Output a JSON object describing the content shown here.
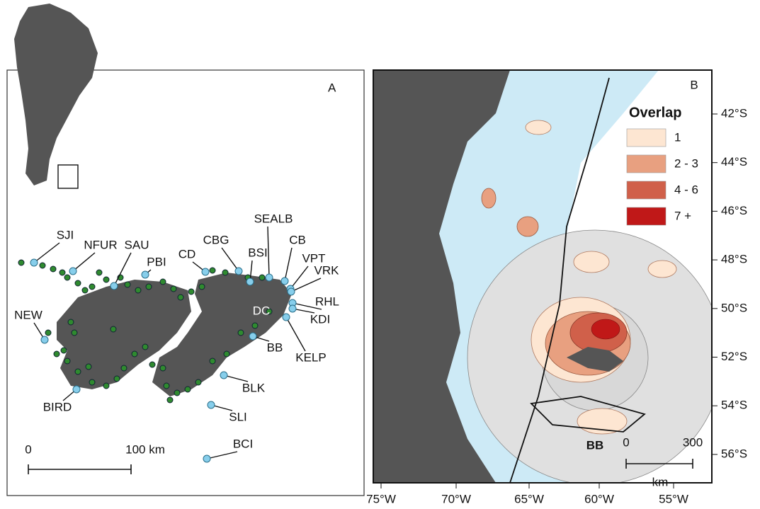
{
  "panel_a": {
    "label": "A",
    "sites": [
      "SJI",
      "NFUR",
      "SAU",
      "PBI",
      "CD",
      "CBG",
      "BSI",
      "SEALB",
      "CB",
      "VPT",
      "VRK",
      "RHL",
      "KDI",
      "DC",
      "BB",
      "KELP",
      "BLK",
      "SLI",
      "BCI",
      "NEW",
      "BIRD"
    ],
    "scale_start": "0",
    "scale_end": "100 km"
  },
  "panel_b": {
    "label": "B",
    "legend": {
      "title": "Overlap",
      "items": [
        {
          "label": "1",
          "color": "#fde6d2"
        },
        {
          "label": "2 - 3",
          "color": "#e8a080"
        },
        {
          "label": "4 - 6",
          "color": "#d0604a"
        },
        {
          "label": "7 +",
          "color": "#c01818"
        }
      ]
    },
    "colony": "BB",
    "scale_start": "0",
    "scale_end": "300",
    "scale_unit": "km",
    "lon_labels": [
      "75°W",
      "70°W",
      "65°W",
      "60°W",
      "55°W"
    ],
    "lat_labels": [
      "42°S",
      "44°S",
      "46°S",
      "48°S",
      "50°S",
      "52°S",
      "54°S",
      "56°S"
    ]
  }
}
